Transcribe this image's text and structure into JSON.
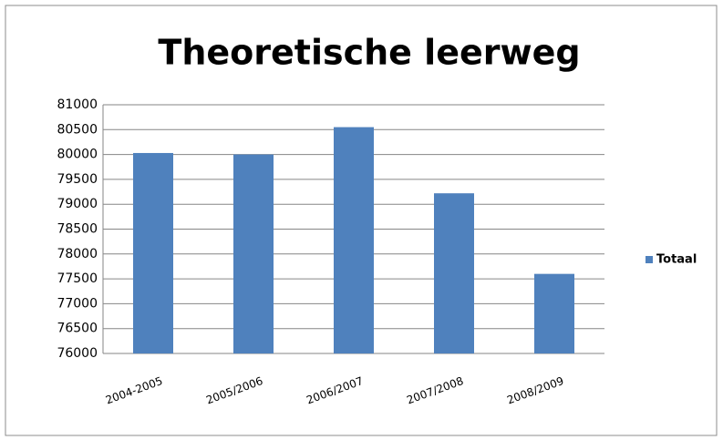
{
  "chart_data": {
    "type": "bar",
    "title": "Theoretische leerweg",
    "categories": [
      "2004-2005",
      "2005/2006",
      "2006/2007",
      "2007/2008",
      "2008/2009"
    ],
    "series": [
      {
        "name": "Totaal",
        "color": "#4f81bd",
        "values": [
          80030,
          80000,
          80550,
          79220,
          77600
        ]
      }
    ],
    "ylim": [
      76000,
      81000
    ],
    "yticks": [
      76000,
      76500,
      77000,
      77500,
      78000,
      78500,
      79000,
      79500,
      80000,
      80500,
      81000
    ],
    "grid": true,
    "legend": "right"
  }
}
